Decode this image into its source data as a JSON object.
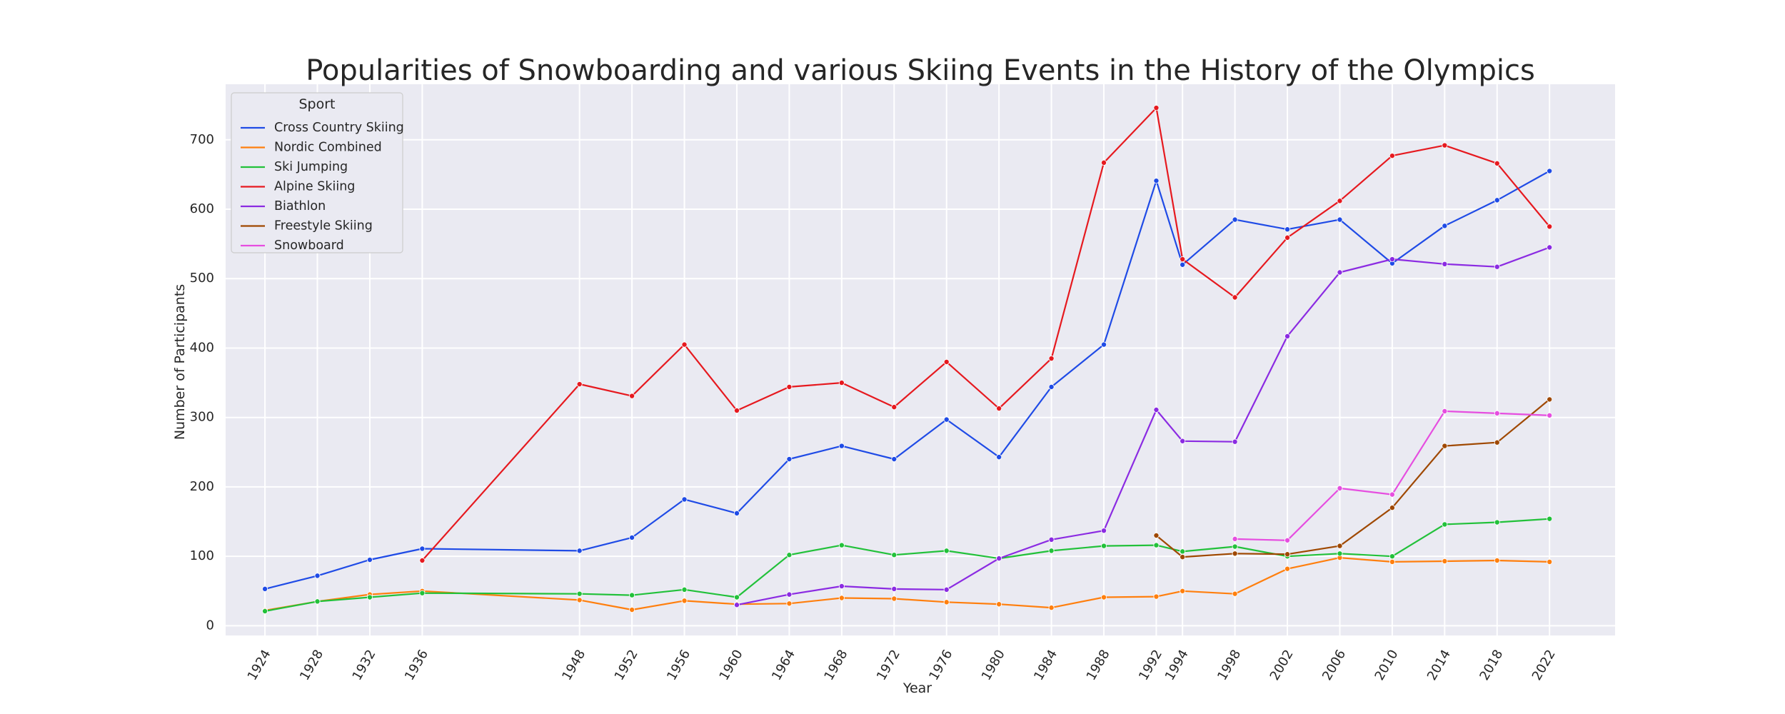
{
  "chart_data": {
    "type": "line",
    "title": "Popularities of Snowboarding and various Skiing Events in the History of the Olympics",
    "xlabel": "Year",
    "ylabel": "Number of Participants",
    "x": [
      1924,
      1928,
      1932,
      1936,
      1948,
      1952,
      1956,
      1960,
      1964,
      1968,
      1972,
      1976,
      1980,
      1984,
      1988,
      1992,
      1994,
      1998,
      2002,
      2006,
      2010,
      2014,
      2018,
      2022
    ],
    "x_tick_labels": [
      "1924",
      "1928",
      "1932",
      "1936",
      "1948",
      "1952",
      "1956",
      "1960",
      "1964",
      "1968",
      "1972",
      "1976",
      "1980",
      "1984",
      "1988",
      "1992",
      "1994",
      "1998",
      "2002",
      "2006",
      "2010",
      "2014",
      "2018",
      "2022"
    ],
    "xlim": [
      1921,
      2027
    ],
    "ylim": [
      -14,
      780
    ],
    "y_ticks": [
      0,
      100,
      200,
      300,
      400,
      500,
      600,
      700
    ],
    "grid": true,
    "markers": true,
    "legend": {
      "title": "Sport",
      "position": "top-left"
    },
    "series": [
      {
        "name": "Cross Country Skiing",
        "color": "#1f4be6",
        "points": [
          [
            1924,
            53
          ],
          [
            1928,
            72
          ],
          [
            1932,
            95
          ],
          [
            1936,
            111
          ],
          [
            1948,
            108
          ],
          [
            1952,
            127
          ],
          [
            1956,
            182
          ],
          [
            1960,
            162
          ],
          [
            1964,
            240
          ],
          [
            1968,
            259
          ],
          [
            1972,
            240
          ],
          [
            1976,
            297
          ],
          [
            1980,
            243
          ],
          [
            1984,
            344
          ],
          [
            1988,
            405
          ],
          [
            1992,
            641
          ],
          [
            1994,
            520
          ],
          [
            1998,
            585
          ],
          [
            2002,
            571
          ],
          [
            2006,
            585
          ],
          [
            2010,
            522
          ],
          [
            2014,
            576
          ],
          [
            2018,
            613
          ],
          [
            2022,
            655
          ]
        ]
      },
      {
        "name": "Nordic Combined",
        "color": "#ff7f0e",
        "points": [
          [
            1924,
            22
          ],
          [
            1928,
            35
          ],
          [
            1932,
            45
          ],
          [
            1936,
            50
          ],
          [
            1948,
            37
          ],
          [
            1952,
            23
          ],
          [
            1956,
            36
          ],
          [
            1960,
            31
          ],
          [
            1964,
            32
          ],
          [
            1968,
            40
          ],
          [
            1972,
            39
          ],
          [
            1976,
            34
          ],
          [
            1980,
            31
          ],
          [
            1984,
            26
          ],
          [
            1988,
            41
          ],
          [
            1992,
            42
          ],
          [
            1994,
            50
          ],
          [
            1998,
            46
          ],
          [
            2002,
            82
          ],
          [
            2006,
            98
          ],
          [
            2010,
            92
          ],
          [
            2014,
            93
          ],
          [
            2018,
            94
          ],
          [
            2022,
            92
          ]
        ]
      },
      {
        "name": "Ski Jumping",
        "color": "#22c13a",
        "points": [
          [
            1924,
            21
          ],
          [
            1928,
            35
          ],
          [
            1932,
            41
          ],
          [
            1936,
            47
          ],
          [
            1948,
            46
          ],
          [
            1952,
            44
          ],
          [
            1956,
            52
          ],
          [
            1960,
            41
          ],
          [
            1964,
            102
          ],
          [
            1968,
            116
          ],
          [
            1972,
            102
          ],
          [
            1976,
            108
          ],
          [
            1980,
            97
          ],
          [
            1984,
            108
          ],
          [
            1988,
            115
          ],
          [
            1992,
            116
          ],
          [
            1994,
            107
          ],
          [
            1998,
            114
          ],
          [
            2002,
            100
          ],
          [
            2006,
            104
          ],
          [
            2010,
            100
          ],
          [
            2014,
            146
          ],
          [
            2018,
            149
          ],
          [
            2022,
            154
          ]
        ]
      },
      {
        "name": "Alpine Skiing",
        "color": "#e6191f",
        "points": [
          [
            1936,
            94
          ],
          [
            1948,
            348
          ],
          [
            1952,
            331
          ],
          [
            1956,
            405
          ],
          [
            1960,
            310
          ],
          [
            1964,
            344
          ],
          [
            1968,
            350
          ],
          [
            1972,
            315
          ],
          [
            1976,
            380
          ],
          [
            1980,
            313
          ],
          [
            1984,
            385
          ],
          [
            1988,
            667
          ],
          [
            1992,
            746
          ],
          [
            1994,
            528
          ],
          [
            1998,
            473
          ],
          [
            2002,
            559
          ],
          [
            2006,
            612
          ],
          [
            2010,
            677
          ],
          [
            2014,
            692
          ],
          [
            2018,
            666
          ],
          [
            2022,
            575
          ]
        ]
      },
      {
        "name": "Biathlon",
        "color": "#8b2be2",
        "points": [
          [
            1960,
            30
          ],
          [
            1964,
            45
          ],
          [
            1968,
            57
          ],
          [
            1972,
            53
          ],
          [
            1976,
            52
          ],
          [
            1980,
            97
          ],
          [
            1984,
            124
          ],
          [
            1988,
            137
          ],
          [
            1992,
            311
          ],
          [
            1994,
            266
          ],
          [
            1998,
            265
          ],
          [
            2002,
            417
          ],
          [
            2006,
            509
          ],
          [
            2010,
            528
          ],
          [
            2014,
            521
          ],
          [
            2018,
            517
          ],
          [
            2022,
            545
          ]
        ]
      },
      {
        "name": "Freestyle Skiing",
        "color": "#9f4800",
        "points": [
          [
            1992,
            130
          ],
          [
            1994,
            99
          ],
          [
            1998,
            104
          ],
          [
            2002,
            103
          ],
          [
            2006,
            115
          ],
          [
            2010,
            170
          ],
          [
            2014,
            259
          ],
          [
            2018,
            264
          ],
          [
            2022,
            326
          ]
        ]
      },
      {
        "name": "Snowboard",
        "color": "#e64ee0",
        "points": [
          [
            1998,
            125
          ],
          [
            2002,
            123
          ],
          [
            2006,
            198
          ],
          [
            2010,
            189
          ],
          [
            2014,
            309
          ],
          [
            2018,
            306
          ],
          [
            2022,
            303
          ]
        ]
      }
    ]
  }
}
